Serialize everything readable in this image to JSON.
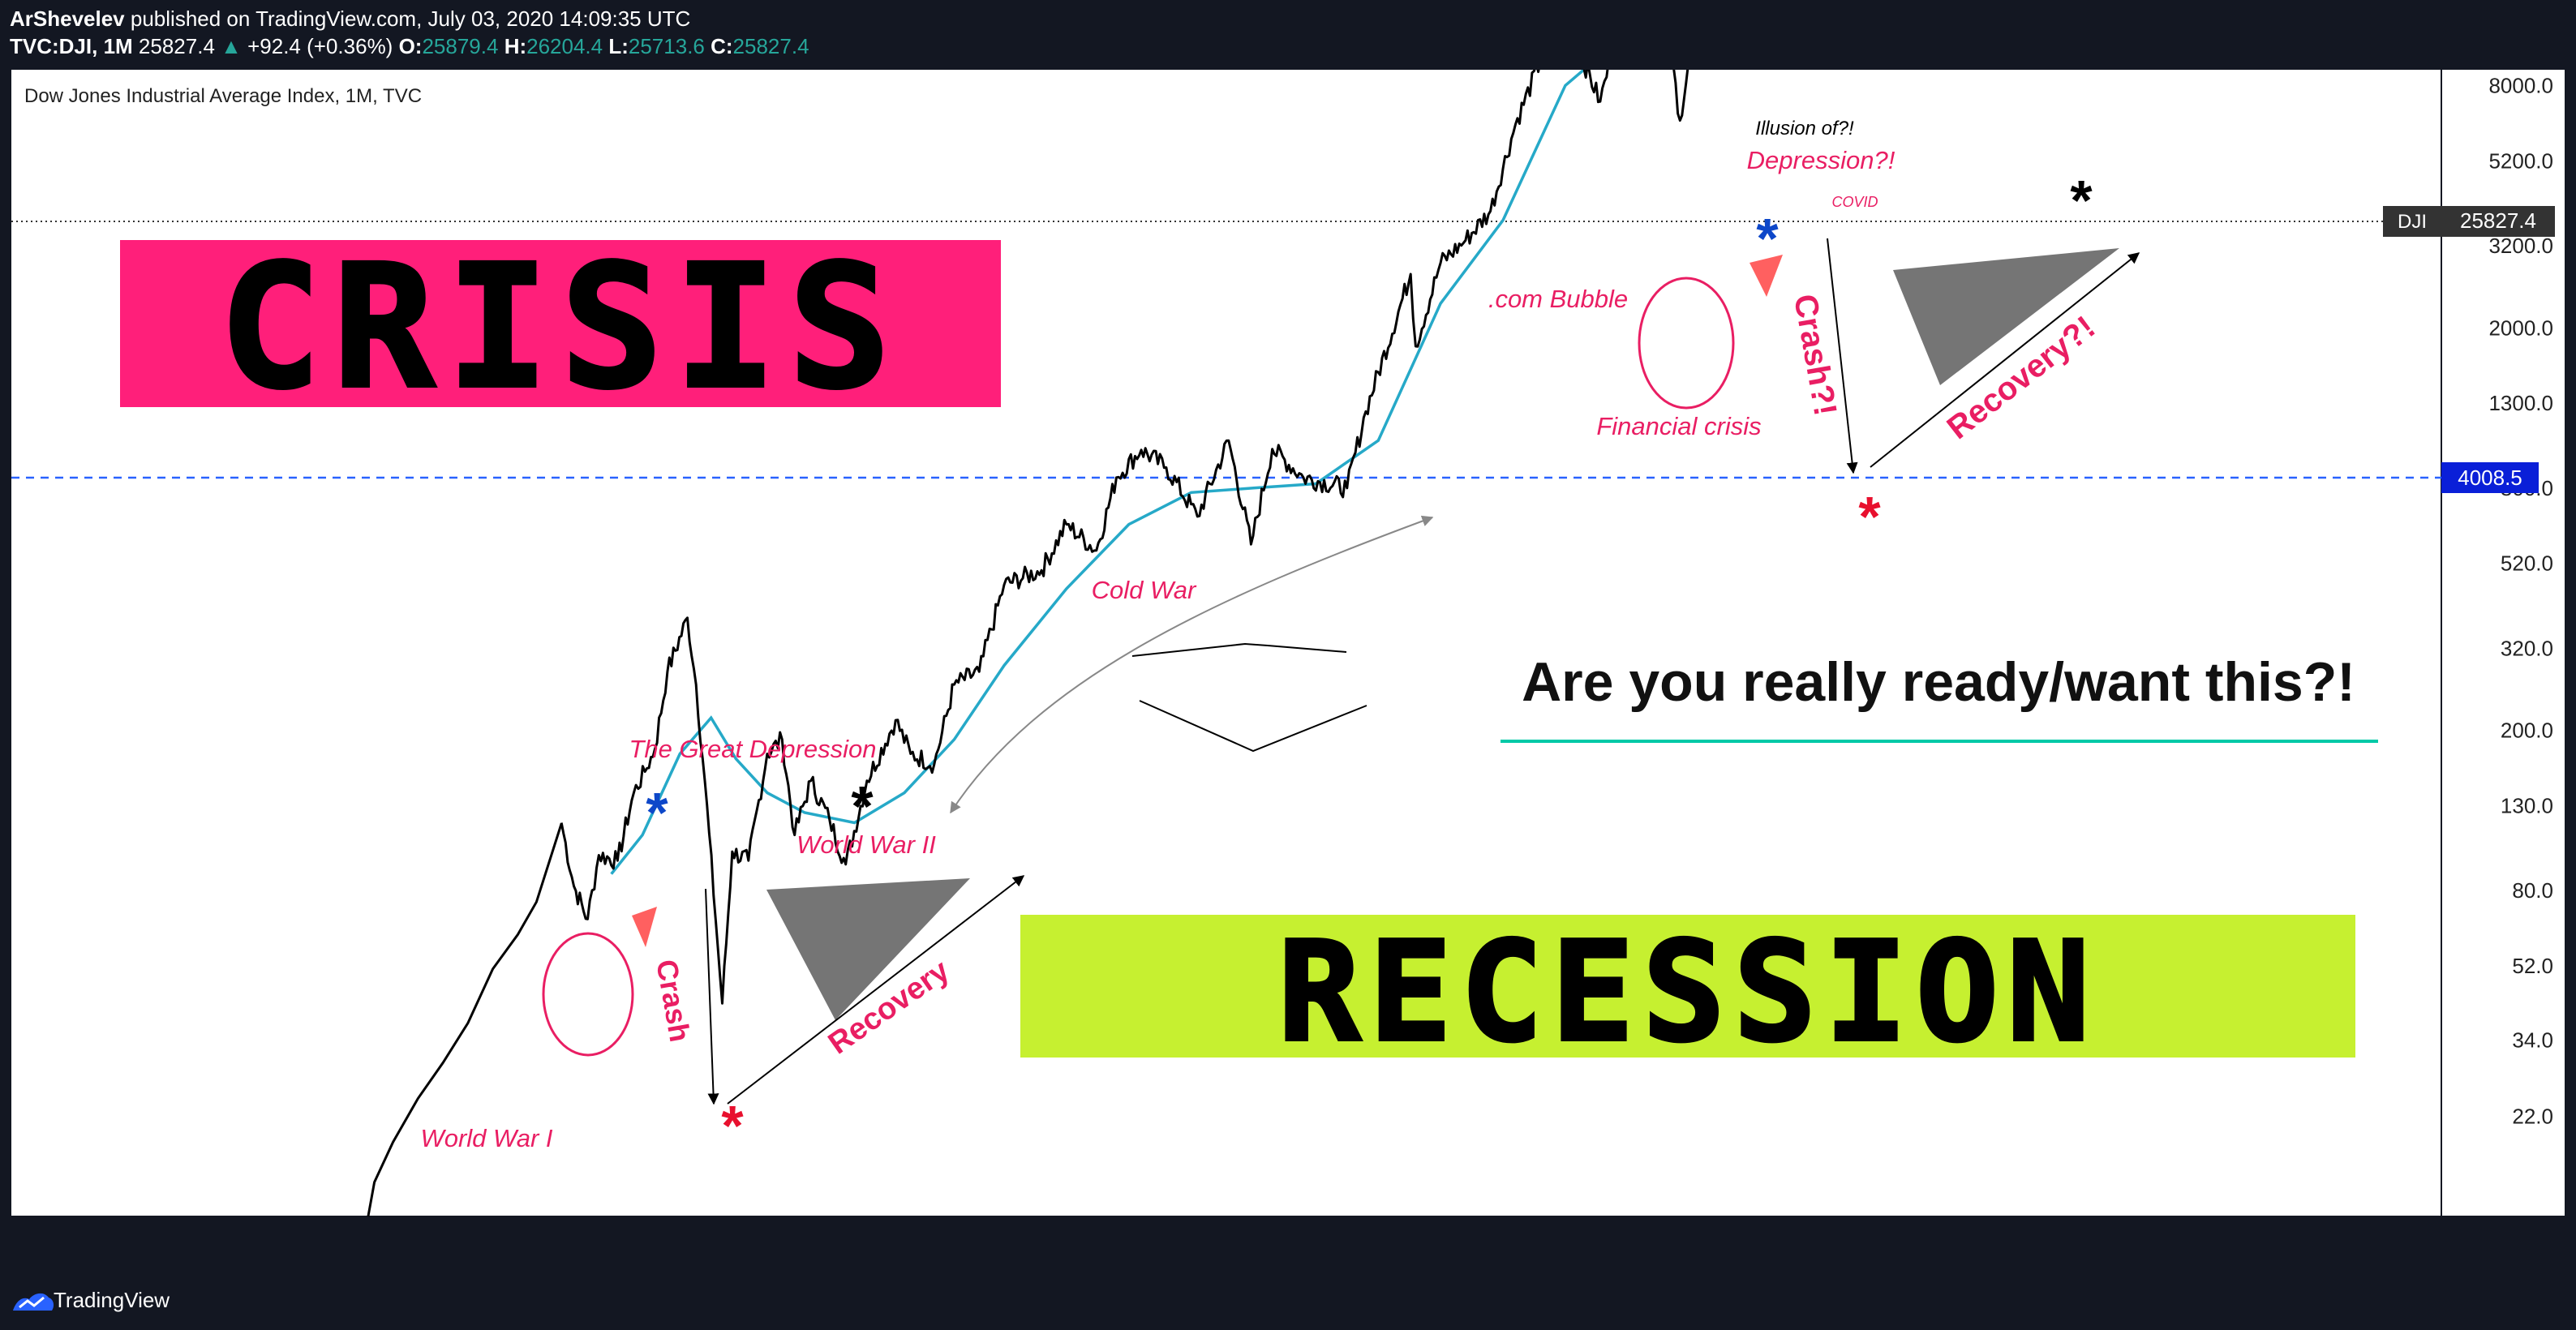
{
  "header": {
    "author": "ArShevelev",
    "published_text": "published on TradingView.com, July 03, 2020 14:09:35 UTC",
    "symbol": "TVC:DJI, 1M",
    "last": "25827.4",
    "change": "+92.4 (+0.36%)",
    "o_label": "O:",
    "o": "25879.4",
    "h_label": "H:",
    "h": "26204.4",
    "l_label": "L:",
    "l": "25713.6",
    "c_label": "C:",
    "c": "25827.4"
  },
  "footer": {
    "brand": "TradingView"
  },
  "colors": {
    "pink": "#e91e63",
    "price": "#000000",
    "ma": "#26a9c8",
    "lime": "#c6f030",
    "blue_line": "#2962ff",
    "underline": "#00c9a7"
  },
  "chart_data": {
    "type": "line",
    "title": "Dow Jones Industrial Average Index, 1M, TVC",
    "y_scale": "log",
    "ylim": [
      14,
      80000
    ],
    "xlim": [
      1897,
      2068
    ],
    "x_ticks": [
      "1915",
      "1927",
      "1939",
      "1951",
      "1963",
      "1975",
      "1987",
      "1999",
      "2011",
      "2023",
      "2035",
      "2047",
      "2059"
    ],
    "y_ticks": [
      "22.0",
      "34.0",
      "52.0",
      "80.0",
      "130.0",
      "200.0",
      "320.0",
      "520.0",
      "800.0",
      "1300.0",
      "2000.0",
      "3200.0",
      "5200.0",
      "8000.0",
      "13000.0",
      "20000.0",
      "32000.0",
      "52000.0",
      "80000.0"
    ],
    "series": [
      {
        "name": "DJI",
        "x": [
          1919.5,
          1920.5,
          1921.6,
          1922.5,
          1924.0,
          1925.3,
          1926.2,
          1927.0,
          1928.0,
          1929.6,
          1930.3,
          1931.0,
          1932.4,
          1933.2,
          1934.5,
          1936.0,
          1937.2,
          1938.2,
          1939.5,
          1941.0,
          1942.3,
          1944.0,
          1946.3,
          1947.5,
          1949.4,
          1951.0,
          1953.0,
          1955.0,
          1958.0,
          1960.0,
          1962.4,
          1964.0,
          1966.0,
          1968.0,
          1970.5,
          1973.0,
          1974.8,
          1976.5,
          1979.0,
          1982.5,
          1984.0,
          1987.6,
          1988.0,
          1990.0,
          1992.0,
          1994.0,
          1996.0,
          1998.0,
          2000.0,
          2002.8,
          2004.0,
          2007.8,
          2009.2,
          2010.5,
          2013.0,
          2015.0,
          2017.0,
          2018.0,
          2020.1,
          2020.3,
          2020.5
        ],
        "values": [
          118,
          82,
          68,
          98,
          95,
          140,
          158,
          180,
          280,
          381,
          260,
          150,
          42,
          100,
          95,
          175,
          190,
          110,
          150,
          120,
          93,
          150,
          212,
          175,
          165,
          260,
          280,
          460,
          500,
          650,
          560,
          850,
          995,
          900,
          680,
          1050,
          580,
          1000,
          850,
          800,
          1240,
          2720,
          1800,
          2900,
          3300,
          3900,
          6400,
          9200,
          11700,
          7300,
          10400,
          14100,
          6550,
          11600,
          15000,
          17700,
          24000,
          23000,
          29500,
          18600,
          25827
        ]
      },
      {
        "name": "MA",
        "x": [
          1923.5,
          1926.0,
          1929.0,
          1931.5,
          1933.5,
          1936.0,
          1939.0,
          1943.0,
          1947.0,
          1951.0,
          1955.0,
          1960.0,
          1965.0,
          1970.0,
          1975.0,
          1980.0,
          1985.0,
          1990.0,
          1995.0,
          2000.0,
          2004.0,
          2008.0,
          2011.0,
          2014.0,
          2017.0,
          2020.5
        ],
        "values": [
          88,
          110,
          175,
          215,
          170,
          140,
          125,
          118,
          140,
          190,
          290,
          450,
          650,
          780,
          800,
          820,
          1050,
          2300,
          3700,
          8000,
          10200,
          11000,
          10500,
          12500,
          17500,
          21500
        ]
      }
    ],
    "last_price_label": "DJI",
    "last_price": "25827.4",
    "horizontal_level": "4008.5",
    "annotations": {
      "crisis": "CRISIS",
      "recession": "RECESSION",
      "headline": "Are you really ready/want this?!",
      "ww1": "World War I",
      "great_depression": "The Great Depression",
      "crash": "Crash",
      "ww2": "World War II",
      "recovery": "Recovery",
      "cold_war": "Cold War",
      "dotcom": ".com Bubble",
      "financial_crisis": "Financial crisis",
      "illusion": "Illusion of?!",
      "depression_q": "Depression?!",
      "covid": "COVID",
      "crash_q": "Crash?!",
      "recovery_q": "Recovery?!"
    }
  }
}
